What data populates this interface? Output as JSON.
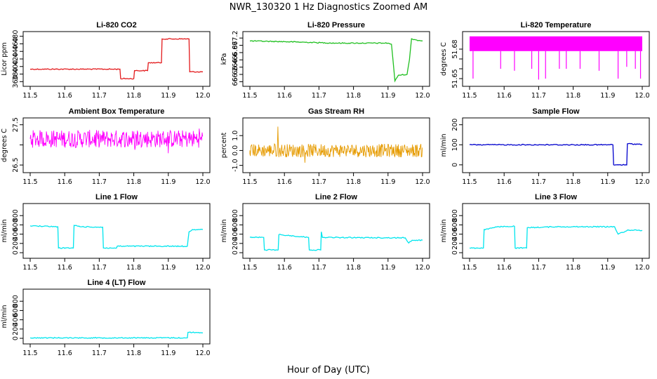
{
  "page": {
    "title": "NWR_130320  1 Hz Diagnostics Zoomed AM",
    "xlabel": "Hour of Day (UTC)"
  },
  "chart_data": [
    {
      "type": "line",
      "title": "Li-820 CO2",
      "ylabel": "Licor ppm",
      "color": "#e31a1c",
      "xlim": [
        11.5,
        12.0
      ],
      "ylim": [
        355,
        485
      ],
      "yticks": [
        360,
        380,
        400,
        420,
        440,
        460,
        480
      ],
      "xticks": [
        11.5,
        11.6,
        11.7,
        11.8,
        11.9,
        12.0
      ],
      "series": [
        {
          "x": [
            11.5,
            11.76,
            11.762,
            11.8,
            11.802,
            11.84,
            11.842,
            11.88,
            11.882,
            11.96,
            11.962,
            12.0
          ],
          "y": [
            393,
            393,
            368,
            368,
            389,
            389,
            410,
            410,
            473,
            473,
            386,
            386
          ]
        }
      ]
    },
    {
      "type": "line",
      "title": "Li-820 Pressure",
      "ylabel": "kPa",
      "color": "#1fbf1f",
      "xlim": [
        11.5,
        12.0
      ],
      "ylim": [
        65.95,
        67.3
      ],
      "yticks": [
        66.0,
        66.2,
        66.4,
        66.6,
        66.8,
        67.0,
        67.2
      ],
      "xticks": [
        11.5,
        11.6,
        11.7,
        11.8,
        11.9,
        12.0
      ],
      "series": [
        {
          "x": [
            11.5,
            11.6,
            11.75,
            11.9,
            11.91,
            11.92,
            11.93,
            11.955,
            11.962,
            11.968,
            11.98,
            12.0
          ],
          "y": [
            67.12,
            67.1,
            67.06,
            67.06,
            67.03,
            66.02,
            66.18,
            66.2,
            66.6,
            67.18,
            67.15,
            67.12
          ]
        }
      ]
    },
    {
      "type": "line",
      "title": "Li-820 Temperature",
      "ylabel": "degrees C",
      "color": "#ff00ff",
      "xlim": [
        11.5,
        12.0
      ],
      "ylim": [
        51.645,
        51.695
      ],
      "yticks": [
        51.65,
        51.66,
        51.67,
        51.68
      ],
      "yticklabels": [
        "51.65",
        "",
        "",
        "51.68"
      ],
      "xticks": [
        11.5,
        11.6,
        11.7,
        11.8,
        11.9,
        12.0
      ],
      "band": {
        "lo": 51.678,
        "hi": 51.693
      },
      "spikes": {
        "x": [
          11.51,
          11.59,
          11.63,
          11.68,
          11.7,
          11.72,
          11.76,
          11.78,
          11.82,
          11.875,
          11.93,
          11.955,
          11.98,
          11.995
        ],
        "y": [
          51.65,
          51.66,
          51.658,
          51.66,
          51.649,
          51.65,
          51.66,
          51.66,
          51.66,
          51.658,
          51.65,
          51.662,
          51.66,
          51.65
        ]
      }
    },
    {
      "type": "line",
      "title": "Ambient Box Temperature",
      "ylabel": "degrees C",
      "color": "#ff00ff",
      "xlim": [
        11.5,
        12.0
      ],
      "ylim": [
        26.38,
        27.6
      ],
      "yticks": [
        26.5,
        27.0,
        27.5
      ],
      "yticklabels": [
        "26.5",
        "",
        "27.5"
      ],
      "xticks": [
        11.5,
        11.6,
        11.7,
        11.8,
        11.9,
        12.0
      ],
      "noise": {
        "center": 27.15,
        "amp": 0.22,
        "min": 26.42,
        "max": 27.55
      }
    },
    {
      "type": "line",
      "title": "Gas Stream RH",
      "ylabel": "percent",
      "color": "#e69b00",
      "xlim": [
        11.5,
        12.0
      ],
      "ylim": [
        -1.3,
        2.0
      ],
      "yticks": [
        -1.0,
        0.0,
        1.0
      ],
      "yticklabels": [
        "-1.0",
        "0.0",
        "1.0"
      ],
      "xticks": [
        11.5,
        11.6,
        11.7,
        11.8,
        11.9,
        12.0
      ],
      "noise": {
        "center": 0.0,
        "amp": 0.45,
        "min": -1.15,
        "max": 1.75
      }
    },
    {
      "type": "line",
      "title": "Sample Flow",
      "ylabel": "ml/min",
      "color": "#0000cd",
      "xlim": [
        11.5,
        12.0
      ],
      "ylim": [
        -25,
        220
      ],
      "yticks": [
        0,
        100,
        200
      ],
      "xticks": [
        11.5,
        11.6,
        11.7,
        11.8,
        11.9,
        12.0
      ],
      "series": [
        {
          "x": [
            11.5,
            11.915,
            11.917,
            11.955,
            11.957,
            12.0
          ],
          "y": [
            100,
            100,
            0,
            0,
            105,
            102
          ]
        }
      ]
    },
    {
      "type": "line",
      "title": "Line 1 Flow",
      "ylabel": "ml/min",
      "color": "#00e5ee",
      "xlim": [
        11.5,
        12.0
      ],
      "ylim": [
        -60,
        1000
      ],
      "yticks": [
        0,
        200,
        400,
        600,
        800
      ],
      "xticks": [
        11.5,
        11.6,
        11.7,
        11.8,
        11.9,
        12.0
      ],
      "series": [
        {
          "x": [
            11.5,
            11.54,
            11.58,
            11.582,
            11.625,
            11.627,
            11.65,
            11.71,
            11.712,
            11.75,
            11.752,
            11.955,
            11.96,
            11.97,
            12.0
          ],
          "y": [
            580,
            570,
            560,
            100,
            100,
            590,
            560,
            550,
            100,
            100,
            140,
            140,
            450,
            500,
            500
          ]
        }
      ]
    },
    {
      "type": "line",
      "title": "Line 2 Flow",
      "ylabel": "ml/min",
      "color": "#00e5ee",
      "xlim": [
        11.5,
        12.0
      ],
      "ylim": [
        -60,
        1000
      ],
      "yticks": [
        0,
        200,
        400,
        600,
        800
      ],
      "xticks": [
        11.5,
        11.6,
        11.7,
        11.8,
        11.9,
        12.0
      ],
      "series": [
        {
          "x": [
            11.5,
            11.54,
            11.542,
            11.582,
            11.584,
            11.67,
            11.672,
            11.705,
            11.707,
            11.71,
            11.8,
            11.95,
            11.96,
            11.97,
            12.0
          ],
          "y": [
            330,
            330,
            60,
            60,
            390,
            330,
            60,
            60,
            450,
            330,
            325,
            320,
            210,
            270,
            270
          ]
        }
      ]
    },
    {
      "type": "line",
      "title": "Line 3 Flow",
      "ylabel": "ml/min",
      "color": "#00e5ee",
      "xlim": [
        11.5,
        12.0
      ],
      "ylim": [
        -60,
        1000
      ],
      "yticks": [
        0,
        200,
        400,
        600,
        800
      ],
      "xticks": [
        11.5,
        11.6,
        11.7,
        11.8,
        11.9,
        12.0
      ],
      "series": [
        {
          "x": [
            11.5,
            11.54,
            11.542,
            11.585,
            11.63,
            11.632,
            11.665,
            11.667,
            11.75,
            11.92,
            11.93,
            11.96,
            12.0
          ],
          "y": [
            100,
            100,
            500,
            560,
            570,
            100,
            100,
            540,
            560,
            560,
            400,
            490,
            480
          ]
        }
      ]
    },
    {
      "type": "line",
      "title": "Line 4 (LT) Flow",
      "ylabel": "ml/min",
      "color": "#00e5ee",
      "xlim": [
        11.5,
        12.0
      ],
      "ylim": [
        -60,
        1000
      ],
      "yticks": [
        0,
        200,
        400,
        600,
        800
      ],
      "xticks": [
        11.5,
        11.6,
        11.7,
        11.8,
        11.9,
        12.0
      ],
      "series": [
        {
          "x": [
            11.5,
            11.955,
            11.957,
            12.0
          ],
          "y": [
            10,
            10,
            130,
            120
          ]
        }
      ]
    }
  ]
}
